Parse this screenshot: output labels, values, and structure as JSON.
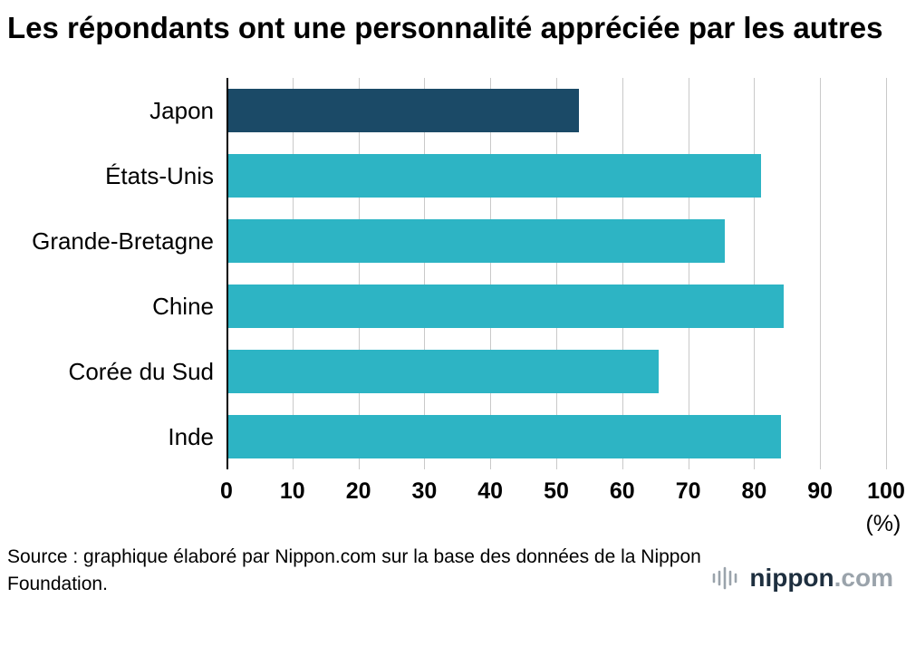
{
  "title": "Les répondants ont une personnalité appréciée par les autres",
  "source": {
    "text": "Source : graphique élaboré par Nippon.com sur la base des données de la Nippon Foundation."
  },
  "logo": {
    "name": "nippon",
    "suffix": ".com"
  },
  "colors": {
    "japan_bar": "#1b4a67",
    "default_bar": "#2db4c4",
    "gridline": "#c9c9c9",
    "axis": "#000000"
  },
  "chart_data": {
    "type": "bar",
    "orientation": "horizontal",
    "title": "Les répondants ont une personnalité appréciée par les autres",
    "categories": [
      "Japon",
      "États-Unis",
      "Grande-Bretagne",
      "Chine",
      "Corée du Sud",
      "Inde"
    ],
    "values": [
      53.5,
      81,
      75.5,
      84.5,
      65.5,
      84
    ],
    "bar_colors": [
      "#1b4a67",
      "#2db4c4",
      "#2db4c4",
      "#2db4c4",
      "#2db4c4",
      "#2db4c4"
    ],
    "unit_label": "(%)",
    "xlabel": "",
    "ylabel": "",
    "xlim": [
      0,
      100
    ],
    "xticks": [
      0,
      10,
      20,
      30,
      40,
      50,
      60,
      70,
      80,
      90,
      100
    ],
    "grid": true,
    "legend": false
  }
}
